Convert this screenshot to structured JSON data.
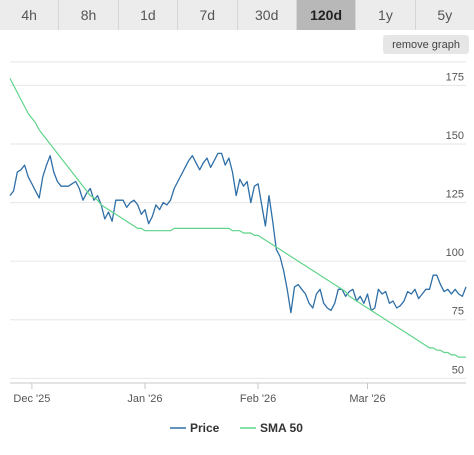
{
  "tabs": [
    {
      "label": "4h",
      "active": false
    },
    {
      "label": "8h",
      "active": false
    },
    {
      "label": "1d",
      "active": false
    },
    {
      "label": "7d",
      "active": false
    },
    {
      "label": "30d",
      "active": false
    },
    {
      "label": "120d",
      "active": true
    },
    {
      "label": "1y",
      "active": false
    },
    {
      "label": "5y",
      "active": false
    }
  ],
  "remove_graph_label": "remove graph",
  "colors": {
    "price": "#2f6fa7",
    "sma": "#5fd48a",
    "grid": "#e6e6e6",
    "axis": "#c8c8c8"
  },
  "chart_data": {
    "type": "line",
    "x_ticks": [
      "Dec '25",
      "Jan '26",
      "Feb '26",
      "Mar '26"
    ],
    "x_tick_index": [
      6,
      37,
      68,
      98
    ],
    "y_ticks": [
      50,
      75,
      100,
      125,
      150,
      175
    ],
    "ylim": [
      48,
      185
    ],
    "xlim": [
      0,
      125
    ],
    "grid": "horizontal",
    "legend_position": "bottom-center",
    "series": [
      {
        "name": "Price",
        "values": [
          128,
          130,
          138,
          139,
          141,
          136,
          133,
          130,
          127,
          136,
          141,
          145,
          138,
          134,
          132,
          132,
          132,
          133,
          134,
          131,
          126,
          129,
          131,
          126,
          128,
          124,
          118,
          121,
          117,
          126,
          126,
          126,
          123,
          125,
          126,
          124,
          120,
          122,
          116,
          119,
          124,
          122,
          125,
          124,
          126,
          131,
          134,
          137,
          140,
          143,
          145,
          142,
          139,
          142,
          144,
          140,
          143,
          146,
          146,
          141,
          144,
          138,
          128,
          135,
          132,
          134,
          125,
          132,
          133,
          124,
          115,
          128,
          117,
          105,
          102,
          96,
          88,
          78,
          89,
          90,
          88,
          86,
          82,
          80,
          86,
          88,
          82,
          80,
          79,
          82,
          88,
          88,
          85,
          87,
          88,
          83,
          85,
          82,
          86,
          79,
          80,
          88,
          86,
          87,
          82,
          83,
          80,
          81,
          83,
          87,
          86,
          88,
          84,
          86,
          88,
          88,
          94,
          94,
          90,
          87,
          88,
          86,
          88,
          86,
          85,
          89
        ]
      },
      {
        "name": "SMA 50",
        "values": [
          178,
          175,
          172,
          169,
          166,
          163,
          161,
          159,
          156,
          154,
          152,
          150,
          148,
          146,
          144,
          142,
          140,
          138,
          136,
          134,
          132,
          130,
          128,
          127,
          126,
          124,
          123,
          122,
          121,
          120,
          119,
          118,
          117,
          116,
          115,
          114,
          114,
          113,
          113,
          113,
          113,
          113,
          113,
          113,
          113,
          114,
          114,
          114,
          114,
          114,
          114,
          114,
          114,
          114,
          114,
          114,
          114,
          114,
          114,
          114,
          114,
          113,
          113,
          113,
          112,
          112,
          112,
          111,
          111,
          110,
          109,
          108,
          107,
          106,
          105,
          104,
          103,
          102,
          101,
          100,
          99,
          98,
          97,
          96,
          95,
          94,
          93,
          92,
          91,
          90,
          89,
          88,
          87,
          85,
          84,
          83,
          82,
          81,
          80,
          79,
          78,
          77,
          76,
          75,
          74,
          73,
          72,
          71,
          70,
          69,
          68,
          67,
          66,
          65,
          64,
          63,
          63,
          62,
          62,
          61,
          61,
          60,
          60,
          59,
          59,
          59
        ]
      }
    ]
  }
}
